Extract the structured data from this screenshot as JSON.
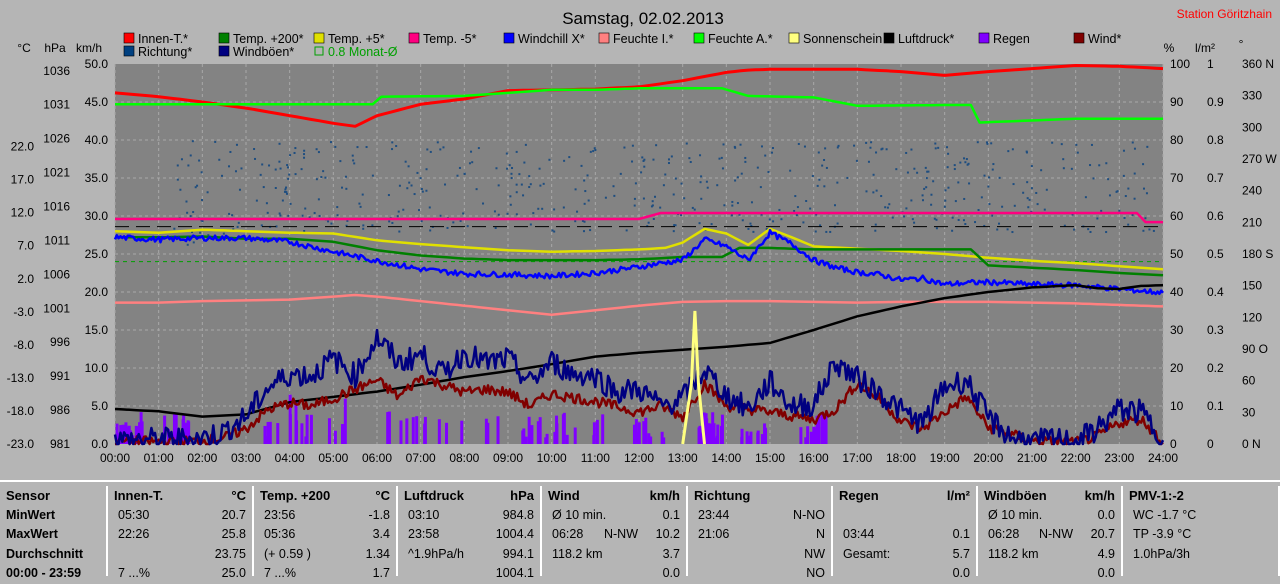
{
  "chart_data": {
    "type": "line",
    "title": "Samstag, 02.02.2013",
    "station": "Station Göritzhain",
    "left_axes": {
      "temp_label": "°C",
      "temp_ticks": [
        "22.0",
        "17.0",
        "12.0",
        "7.0",
        "2.0",
        "-3.0",
        "-8.0",
        "-13.0",
        "-18.0",
        "-23.0"
      ],
      "hpa_label": "hPa",
      "hpa_ticks": [
        "1036",
        "1031",
        "1026",
        "1021",
        "1016",
        "1011",
        "1006",
        "1001",
        "996",
        "991",
        "986",
        "981"
      ],
      "kmh_label": "km/h",
      "kmh_ticks": [
        "50.0",
        "45.0",
        "40.0",
        "35.0",
        "30.0",
        "25.0",
        "20.0",
        "15.0",
        "10.0",
        "5.0",
        "0.0"
      ],
      "kmh_range": [
        0,
        50
      ]
    },
    "right_axes": {
      "pct_label": "%",
      "pct_ticks": [
        "100",
        "90",
        "80",
        "70",
        "60",
        "50",
        "40",
        "30",
        "20",
        "10",
        "0"
      ],
      "rain_label": "l/m²",
      "rain_ticks": [
        "1",
        "0.9",
        "0.8",
        "0.7",
        "0.6",
        "0.5",
        "0.4",
        "0.3",
        "0.2",
        "0.1",
        "0"
      ],
      "deg_label": "°",
      "deg_ticks": [
        "360 N",
        "330",
        "300",
        "270 W",
        "240",
        "210",
        "180 S",
        "150",
        "120",
        "90 O",
        "60",
        "30",
        "0 N"
      ]
    },
    "x_ticks": [
      "00:00",
      "01:00",
      "02:00",
      "03:00",
      "04:00",
      "05:00",
      "06:00",
      "07:00",
      "08:00",
      "09:00",
      "10:00",
      "11:00",
      "12:00",
      "13:00",
      "14:00",
      "15:00",
      "16:00",
      "17:00",
      "18:00",
      "19:00",
      "20:00",
      "21:00",
      "22:00",
      "23:00",
      "24:00"
    ],
    "legend": [
      {
        "name": "Innen-T.*",
        "color": "#ff0000"
      },
      {
        "name": "Temp. +200*",
        "color": "#008000"
      },
      {
        "name": "Temp. +5*",
        "color": "#e0e000"
      },
      {
        "name": "Temp. -5*",
        "color": "#ff0080"
      },
      {
        "name": "Windchill X*",
        "color": "#0000ff"
      },
      {
        "name": "Feuchte I.*",
        "color": "#ff8080"
      },
      {
        "name": "Feuchte A.*",
        "color": "#00ff00"
      },
      {
        "name": "Sonnenschein",
        "color": "#ffff80"
      },
      {
        "name": "Luftdruck*",
        "color": "#000000"
      },
      {
        "name": "Regen",
        "color": "#8000ff"
      },
      {
        "name": "Wind*",
        "color": "#800000"
      },
      {
        "name": "Richtung*",
        "color": "#004080"
      },
      {
        "name": "Windböen*",
        "color": "#000080"
      },
      {
        "name": "0.8 Monat-Ø",
        "color": "#00a000",
        "hollow": true
      }
    ],
    "series": [
      {
        "name": "Innen-T.*",
        "color": "#ff0000",
        "hours": [
          0,
          1,
          2,
          3,
          4,
          5,
          5.5,
          6,
          7,
          8,
          9,
          10,
          11,
          12,
          13,
          14,
          14.5,
          15,
          16,
          17,
          18,
          19,
          20,
          21,
          22,
          23,
          24
        ],
        "kmh": [
          46.2,
          45.7,
          45.0,
          44.2,
          43.2,
          42.2,
          41.8,
          43.2,
          44.7,
          45.4,
          46.5,
          46.6,
          46.7,
          47.0,
          47.8,
          48.9,
          49.2,
          49.3,
          49.3,
          49.3,
          49.0,
          48.5,
          49.0,
          49.4,
          49.8,
          49.7,
          49.4
        ]
      },
      {
        "name": "Feuchte A.*",
        "color": "#00ff00",
        "hours": [
          0,
          3,
          5.9,
          6.1,
          8,
          10,
          11,
          12,
          13,
          13.9,
          14.5,
          16,
          17,
          19,
          19.6,
          19.8,
          22,
          24
        ],
        "kmh": [
          44.7,
          44.7,
          44.7,
          45.7,
          45.8,
          46.6,
          46.6,
          46.8,
          46.8,
          46.8,
          45.8,
          45.6,
          44.5,
          44.6,
          44.6,
          42.3,
          42.8,
          42.8
        ]
      },
      {
        "name": "Temp. -5*",
        "color": "#ff0080",
        "hours": [
          0,
          2,
          4,
          6,
          8,
          10,
          12,
          12.5,
          14,
          16,
          18,
          20,
          22,
          23.4,
          23.6,
          24
        ],
        "kmh": [
          29.6,
          29.6,
          29.6,
          29.6,
          29.6,
          29.6,
          29.6,
          30.4,
          30.4,
          30.4,
          30.4,
          30.4,
          30.4,
          30.4,
          29.2,
          29.2
        ]
      },
      {
        "name": "Temp. +5*",
        "color": "#e0e000",
        "hours": [
          0,
          1,
          2,
          3,
          4,
          5,
          6,
          7,
          8,
          9,
          10,
          11,
          12,
          12.6,
          13,
          13.5,
          14,
          14.5,
          15,
          15.5,
          16,
          17,
          18,
          19,
          20,
          21,
          22,
          23,
          24
        ],
        "kmh": [
          28.0,
          27.8,
          28.2,
          28.0,
          27.8,
          27.7,
          26.8,
          26.3,
          25.9,
          25.5,
          25.3,
          25.4,
          25.6,
          25.8,
          26.5,
          28.3,
          27.7,
          26.2,
          28.3,
          27.2,
          26.0,
          25.7,
          25.4,
          25.0,
          24.5,
          24.1,
          23.8,
          23.4,
          23.0
        ]
      },
      {
        "name": "Temp. +200*",
        "color": "#008000",
        "hours": [
          0,
          1,
          2,
          3,
          4,
          5,
          6,
          7,
          8,
          9,
          10,
          11,
          12,
          13,
          13.9,
          14.3,
          15,
          16,
          17,
          18,
          19,
          19.6,
          20,
          21,
          22,
          23,
          24
        ],
        "kmh": [
          27.2,
          27.2,
          27.3,
          27.0,
          27.0,
          26.6,
          25.5,
          24.8,
          24.4,
          24.2,
          24.2,
          24.2,
          24.3,
          24.6,
          24.6,
          25.8,
          25.8,
          25.6,
          25.6,
          25.6,
          25.6,
          25.6,
          23.5,
          23.2,
          22.9,
          22.5,
          22.2
        ]
      },
      {
        "name": "Windchill X*",
        "color": "#0000ff",
        "hours": [
          0,
          1,
          2,
          3,
          4,
          5,
          6,
          7,
          8,
          9,
          10,
          11,
          12,
          12.5,
          13,
          13.5,
          14,
          14.5,
          15,
          15.5,
          16,
          16.5,
          17,
          17.5,
          18,
          18.5,
          19,
          19.5,
          20,
          21,
          22,
          23,
          24
        ],
        "kmh": [
          27.2,
          26.9,
          27.1,
          27.1,
          26.6,
          25.3,
          24.1,
          23.0,
          22.4,
          22.3,
          22.1,
          22.5,
          23.3,
          23.8,
          24.2,
          26.9,
          26.0,
          24.2,
          27.8,
          26.3,
          24.2,
          23.2,
          22.6,
          22.3,
          21.6,
          21.8,
          21.0,
          21.2,
          21.3,
          21.0,
          20.9,
          20.4,
          19.9
        ]
      },
      {
        "name": "Feuchte I.*",
        "color": "#ff8080",
        "hours": [
          0,
          1,
          2,
          3,
          4,
          5,
          5.5,
          6,
          7,
          8,
          9,
          10,
          10.5,
          11,
          12,
          13,
          14,
          15,
          16,
          17,
          18,
          19,
          20,
          21,
          22,
          23,
          24
        ],
        "kmh": [
          18.6,
          18.6,
          18.8,
          18.9,
          19.0,
          19.4,
          19.6,
          19.4,
          18.8,
          18.2,
          17.6,
          17.0,
          17.3,
          17.6,
          18.2,
          18.7,
          18.8,
          18.8,
          18.7,
          18.6,
          18.7,
          18.7,
          18.7,
          18.6,
          18.5,
          18.3,
          18.1
        ]
      },
      {
        "name": "Luftdruck*",
        "color": "#000000",
        "hours": [
          0,
          1,
          2,
          3,
          4,
          5,
          6,
          7,
          8,
          9,
          10,
          11,
          12,
          13,
          14,
          15,
          16,
          17,
          18,
          19,
          20,
          21,
          22,
          22.5,
          23,
          23.5,
          24
        ],
        "kmh": [
          4.6,
          4.3,
          3.6,
          3.9,
          5.5,
          6.2,
          6.9,
          7.8,
          8.8,
          9.6,
          10.5,
          11.5,
          12.0,
          12.4,
          12.8,
          13.3,
          15.0,
          16.8,
          18.1,
          19.2,
          20.0,
          20.6,
          20.9,
          20.5,
          20.4,
          20.8,
          20.9
        ]
      },
      {
        "name": "Wind*",
        "color": "#800000",
        "hours": [
          0,
          1,
          2,
          2.5,
          3,
          3.5,
          4,
          4.5,
          5,
          6,
          6.5,
          7,
          8,
          8.5,
          9,
          9.5,
          10,
          11,
          12,
          12.5,
          13,
          13.5,
          14,
          15,
          16,
          16.5,
          17,
          17.5,
          18,
          18.5,
          19,
          19.5,
          20,
          21,
          22,
          22.5,
          23,
          23.5,
          24
        ],
        "kmh": [
          0.4,
          0.3,
          0.4,
          0.8,
          2.0,
          4.5,
          5.4,
          5.0,
          6.0,
          8.4,
          6.2,
          8.8,
          6.8,
          7.2,
          6.8,
          5.0,
          6.6,
          5.6,
          4.2,
          5.0,
          3.6,
          8.0,
          5.0,
          4.2,
          3.2,
          4.6,
          8.0,
          6.0,
          3.0,
          2.0,
          4.2,
          6.2,
          2.2,
          0.4,
          0.2,
          1.0,
          2.8,
          3.3,
          0.2
        ]
      },
      {
        "name": "Windböen*",
        "color": "#000080",
        "hours": [
          0,
          1,
          2,
          2.5,
          3,
          3.5,
          4,
          4.5,
          5,
          5.5,
          6,
          6.5,
          7,
          7.5,
          8,
          8.5,
          9,
          9.5,
          10,
          10.5,
          11,
          11.5,
          12,
          12.5,
          13,
          13.5,
          14,
          14.5,
          15,
          15.5,
          16,
          16.5,
          17,
          17.5,
          18,
          18.5,
          19,
          19.5,
          20,
          20.5,
          21,
          21.5,
          22,
          22.5,
          23,
          23.5,
          24
        ],
        "kmh": [
          0.5,
          0.6,
          0.8,
          1.6,
          3.6,
          7.4,
          9.2,
          9.0,
          11.2,
          9.0,
          14.0,
          10.6,
          11.8,
          9.2,
          12.0,
          10.6,
          11.2,
          8.0,
          10.8,
          9.2,
          9.0,
          6.8,
          7.2,
          5.0,
          6.0,
          9.8,
          6.4,
          4.6,
          8.2,
          5.0,
          5.2,
          10.8,
          8.6,
          6.8,
          4.4,
          2.6,
          7.6,
          8.4,
          3.4,
          1.0,
          0.3,
          0.6,
          0.3,
          2.0,
          4.6,
          4.2,
          0.5
        ]
      }
    ],
    "sun_spike": {
      "name": "Sonnenschein",
      "color": "#ffff80",
      "hours": [
        13.0,
        13.2,
        13.28,
        13.36,
        13.5
      ],
      "kmh": [
        0,
        8,
        17.5,
        8,
        0
      ]
    },
    "richtung_points": 520,
    "rain_bars": 150,
    "ref_lines": [
      {
        "color": "#000000",
        "kmh": 28.6,
        "dash": "14,7"
      },
      {
        "color": "#00a000",
        "kmh": 24.0,
        "dash": "4,4"
      }
    ]
  },
  "table": {
    "row_labels": [
      "Sensor",
      "MinWert",
      "MaxWert",
      "Durchschnitt",
      "00:00 - 23:59"
    ],
    "columns": [
      {
        "name": "Innen-T.",
        "unit": "°C",
        "rows": [
          [
            "05:30",
            "",
            "20.7"
          ],
          [
            "22:26",
            "",
            "25.8"
          ],
          [
            "",
            "",
            "23.75"
          ],
          [
            "7 ...%",
            "",
            "25.0"
          ]
        ]
      },
      {
        "name": "Temp. +200",
        "unit": "°C",
        "rows": [
          [
            "23:56",
            "",
            "-1.8"
          ],
          [
            "05:36",
            "",
            "3.4"
          ],
          [
            "(+ 0.59 )",
            "",
            "1.34"
          ],
          [
            "7 ...%",
            "",
            "1.7"
          ]
        ]
      },
      {
        "name": "Luftdruck",
        "unit": "hPa",
        "rows": [
          [
            "03:10",
            "",
            "984.8"
          ],
          [
            "23:58",
            "",
            "1004.4"
          ],
          [
            "^1.9hPa/h",
            "",
            "994.1"
          ],
          [
            "",
            "",
            "1004.1"
          ]
        ]
      },
      {
        "name": "Wind",
        "unit": "km/h",
        "rows": [
          [
            "Ø 10 min.",
            "",
            "0.1"
          ],
          [
            "06:28",
            "N-NW",
            "10.2"
          ],
          [
            "118.2 km",
            "",
            "3.7"
          ],
          [
            "",
            "",
            "0.0"
          ]
        ]
      },
      {
        "name": "Richtung",
        "unit": "",
        "rows": [
          [
            "23:44",
            "",
            "N-NO"
          ],
          [
            "21:06",
            "",
            "N"
          ],
          [
            "",
            "",
            "NW"
          ],
          [
            "",
            "",
            "NO"
          ]
        ]
      },
      {
        "name": "Regen",
        "unit": "l/m²",
        "rows": [
          [
            "",
            "",
            ""
          ],
          [
            "03:44",
            "",
            "0.1"
          ],
          [
            "Gesamt:",
            "",
            "5.7"
          ],
          [
            "",
            "",
            "0.0"
          ]
        ]
      },
      {
        "name": "Windböen",
        "unit": "km/h",
        "rows": [
          [
            "Ø 10 min.",
            "",
            "0.0"
          ],
          [
            "06:28",
            "N-NW",
            "20.7"
          ],
          [
            "118.2 km",
            "",
            "4.9"
          ],
          [
            "",
            "",
            "0.0"
          ]
        ]
      },
      {
        "name": "PMV-1:-2",
        "unit": "",
        "rows": [
          [
            "WC -1.7 °C",
            "",
            ""
          ],
          [
            "TP -3.9 °C",
            "",
            ""
          ],
          [
            "1.0hPa/3h",
            "",
            ""
          ],
          [
            "",
            "",
            ""
          ]
        ]
      }
    ]
  }
}
